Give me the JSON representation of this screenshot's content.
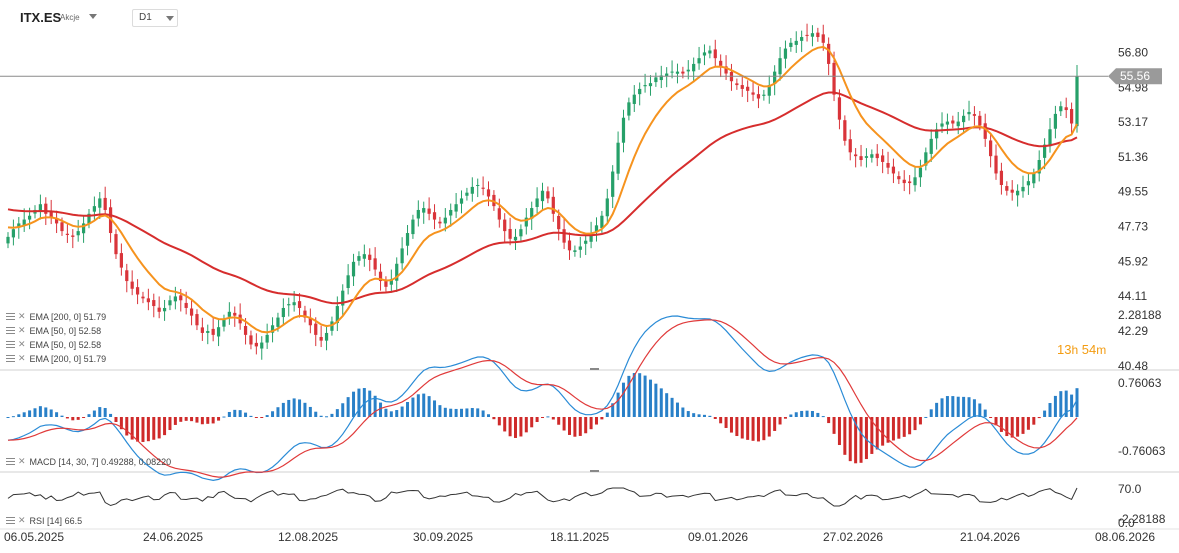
{
  "header": {
    "symbol": "ITX.ES",
    "asset_type": "Akcje",
    "timeframe": "D1"
  },
  "countdown": {
    "hours": "13",
    "h_unit": "h",
    "minutes": "54",
    "m_unit": "m"
  },
  "colors": {
    "up": "#26a069",
    "down": "#d9343a",
    "ema_fast": "#f6931e",
    "ema_slow": "#d62d2d",
    "macd_line": "#2a8bd6",
    "signal_line": "#e03a3a",
    "hist_pos": "#2980c8",
    "hist_neg": "#cf2a2a",
    "rsi_line": "#333333",
    "last_price_bg": "#9a9a9a"
  },
  "legends": {
    "price": [
      "EMA [200, 0] 51.79",
      "EMA [50, 0] 52.58",
      "EMA [50, 0] 52.58",
      "EMA [200, 0] 51.79"
    ],
    "macd": "MACD [14, 30, 7] 0.49288, 0.08220",
    "rsi": "RSI [14] 66.5"
  },
  "chart_data": [
    {
      "type": "candlestick",
      "series_name": "ITX.ES D1",
      "y_ticks": [
        "56.80",
        "54.98",
        "53.17",
        "51.36",
        "49.55",
        "47.73",
        "45.92",
        "44.11",
        "42.29",
        "40.48"
      ],
      "ylim": [
        40.48,
        57.5
      ],
      "last_price": "55.56",
      "x_tick_labels": [
        "06.05.2025",
        "24.06.2025",
        "12.08.2025",
        "30.09.2025",
        "18.11.2025",
        "09.01.2026",
        "27.02.2026",
        "21.04.2026",
        "08.06.2026"
      ],
      "date_range": [
        "2025-05-06",
        "2026-05-27"
      ],
      "close": [
        47.2,
        47.6,
        47.9,
        48.1,
        48.3,
        48.6,
        48.9,
        48.4,
        48.2,
        47.9,
        47.5,
        47.3,
        47.2,
        47.5,
        47.9,
        48.4,
        48.8,
        49.2,
        48.6,
        47.4,
        46.3,
        45.6,
        44.9,
        44.5,
        44.2,
        44.0,
        43.8,
        43.6,
        43.3,
        43.5,
        43.9,
        44.1,
        43.9,
        43.5,
        43.1,
        42.6,
        42.2,
        42.3,
        42.1,
        42.5,
        42.9,
        43.3,
        43.1,
        42.7,
        42.1,
        41.6,
        41.5,
        41.7,
        42.1,
        42.6,
        43.0,
        43.5,
        43.7,
        43.8,
        43.5,
        43.0,
        42.6,
        42.1,
        41.8,
        42.2,
        42.8,
        43.6,
        44.4,
        45.2,
        45.9,
        46.2,
        46.3,
        46.0,
        45.5,
        44.9,
        44.6,
        45.0,
        45.8,
        46.6,
        47.4,
        48.1,
        48.6,
        48.7,
        48.4,
        48.1,
        47.9,
        48.2,
        48.6,
        48.9,
        49.2,
        49.5,
        49.8,
        49.9,
        49.7,
        49.3,
        48.8,
        48.1,
        47.5,
        47.1,
        47.2,
        47.6,
        48.2,
        48.7,
        49.2,
        49.6,
        49.2,
        48.4,
        47.6,
        46.9,
        46.5,
        46.5,
        46.7,
        47.0,
        47.4,
        47.8,
        48.3,
        49.2,
        50.6,
        52.1,
        53.4,
        54.2,
        54.6,
        54.9,
        55.1,
        55.2,
        55.5,
        55.6,
        55.7,
        55.8,
        55.8,
        55.7,
        55.9,
        56.2,
        56.5,
        56.8,
        56.9,
        56.5,
        56.1,
        55.7,
        55.3,
        55.1,
        54.9,
        54.8,
        54.6,
        54.4,
        54.6,
        55.1,
        55.8,
        56.5,
        57.0,
        57.3,
        57.4,
        57.6,
        57.7,
        57.8,
        57.6,
        57.3,
        56.2,
        54.6,
        53.3,
        52.2,
        51.6,
        51.4,
        51.2,
        51.4,
        51.5,
        51.3,
        51.1,
        50.8,
        50.5,
        50.2,
        50.0,
        50.0,
        50.3,
        50.8,
        51.6,
        52.3,
        52.8,
        53.1,
        53.2,
        53.1,
        53.2,
        53.5,
        53.7,
        53.5,
        53.0,
        52.3,
        51.4,
        50.5,
        49.9,
        49.6,
        49.5,
        49.6,
        49.8,
        50.1,
        50.5,
        51.2,
        52.0,
        52.8,
        53.6,
        54.0,
        53.8,
        53.1,
        55.56
      ]
    },
    {
      "type": "line",
      "series": [
        {
          "name": "EMA [200, 0]",
          "value": 51.79
        },
        {
          "name": "EMA [50, 0]",
          "value": 52.58
        }
      ]
    },
    {
      "type": "macd",
      "name": "MACD [14, 30, 7]",
      "values": [
        0.49288,
        0.0822
      ],
      "y_ticks": [
        "2.28188",
        "0.76063",
        "-0.76063",
        "-2.28188"
      ],
      "ylim": [
        -2.6,
        2.6
      ]
    },
    {
      "type": "line",
      "name": "RSI [14]",
      "value": 66.5,
      "y_ticks": [
        "70.0",
        "0.0"
      ],
      "ylim": [
        0,
        100
      ]
    }
  ]
}
